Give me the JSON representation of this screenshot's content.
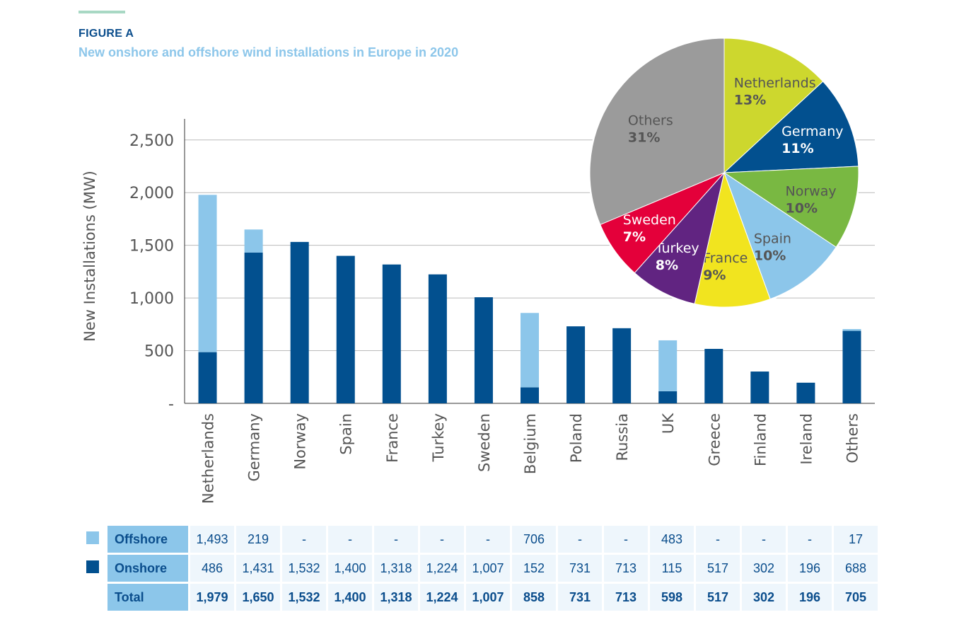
{
  "figure": {
    "label": "FIGURE A",
    "title": "New onshore and offshore wind installations in Europe in 2020"
  },
  "colors": {
    "onshore": "#02508f",
    "offshore": "#8cc6ea",
    "accent": "#a8d8c4",
    "axis": "#333333",
    "grid": "#bbbbbb"
  },
  "chart_data": [
    {
      "type": "bar",
      "stacked": true,
      "ylabel": "New  Installations (MW)",
      "ylim": [
        0,
        2700
      ],
      "yticks": [
        {
          "value": 0,
          "label": "-"
        },
        {
          "value": 500,
          "label": "500"
        },
        {
          "value": 1000,
          "label": "1,000"
        },
        {
          "value": 1500,
          "label": "1,500"
        },
        {
          "value": 2000,
          "label": "2,000"
        },
        {
          "value": 2500,
          "label": "2,500"
        }
      ],
      "grid": true,
      "categories": [
        "Netherlands",
        "Germany",
        "Norway",
        "Spain",
        "France",
        "Turkey",
        "Sweden",
        "Belgium",
        "Poland",
        "Russia",
        "UK",
        "Greece",
        "Finland",
        "Ireland",
        "Others"
      ],
      "series": [
        {
          "name": "Onshore",
          "values": [
            486,
            1431,
            1532,
            1400,
            1318,
            1224,
            1007,
            152,
            731,
            713,
            115,
            517,
            302,
            196,
            688
          ]
        },
        {
          "name": "Offshore",
          "values": [
            1493,
            219,
            0,
            0,
            0,
            0,
            0,
            706,
            0,
            0,
            483,
            0,
            0,
            0,
            17
          ]
        }
      ]
    },
    {
      "type": "pie",
      "slices": [
        {
          "label": "Netherlands",
          "pct_label": "13%",
          "value": 13,
          "color": "#cdd72e",
          "text_color": "#555555"
        },
        {
          "label": "Germany",
          "pct_label": "11%",
          "value": 11,
          "color": "#02508f",
          "text_color": "#ffffff"
        },
        {
          "label": "Norway",
          "pct_label": "10%",
          "value": 10,
          "color": "#79b842",
          "text_color": "#555555"
        },
        {
          "label": "Spain",
          "pct_label": "10%",
          "value": 10,
          "color": "#8cc6ea",
          "text_color": "#555555"
        },
        {
          "label": "France",
          "pct_label": "9%",
          "value": 9,
          "color": "#f1e41f",
          "text_color": "#555555"
        },
        {
          "label": "Turkey",
          "pct_label": "8%",
          "value": 8,
          "color": "#612481",
          "text_color": "#ffffff"
        },
        {
          "label": "Sweden",
          "pct_label": "7%",
          "value": 7,
          "color": "#e4003a",
          "text_color": "#ffffff"
        },
        {
          "label": "Others",
          "pct_label": "31%",
          "value": 31,
          "color": "#9b9b9b",
          "text_color": "#555555"
        }
      ]
    }
  ],
  "table": {
    "rows": [
      {
        "label": "Offshore",
        "kind": "offshore",
        "cells": [
          "1,493",
          "219",
          "-",
          "-",
          "-",
          "-",
          "-",
          "706",
          "-",
          "-",
          "483",
          "-",
          "-",
          "-",
          "17"
        ]
      },
      {
        "label": "Onshore",
        "kind": "onshore",
        "cells": [
          "486",
          "1,431",
          "1,532",
          "1,400",
          "1,318",
          "1,224",
          "1,007",
          "152",
          "731",
          "713",
          "115",
          "517",
          "302",
          "196",
          "688"
        ]
      },
      {
        "label": "Total",
        "kind": "total",
        "cells": [
          "1,979",
          "1,650",
          "1,532",
          "1,400",
          "1,318",
          "1,224",
          "1,007",
          "858",
          "731",
          "713",
          "598",
          "517",
          "302",
          "196",
          "705"
        ]
      }
    ]
  }
}
